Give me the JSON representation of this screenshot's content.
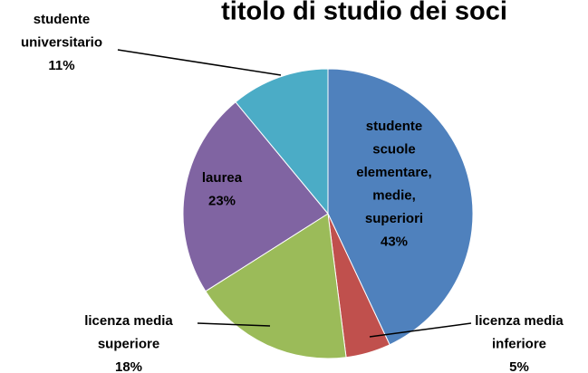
{
  "chart_data": {
    "type": "pie",
    "title": "titolo di studio dei soci",
    "categories": [
      "studente scuole elementare, medie, superiori",
      "licenza media inferiore",
      "licenza media superiore",
      "laurea",
      "studente universitario"
    ],
    "values": [
      43,
      5,
      18,
      23,
      11
    ],
    "value_labels": [
      "43%",
      "5%",
      "18%",
      "23%",
      "11%"
    ],
    "colors": [
      "#4f81bd",
      "#c0504d",
      "#9bbb59",
      "#8064a2",
      "#4bacc6"
    ]
  }
}
